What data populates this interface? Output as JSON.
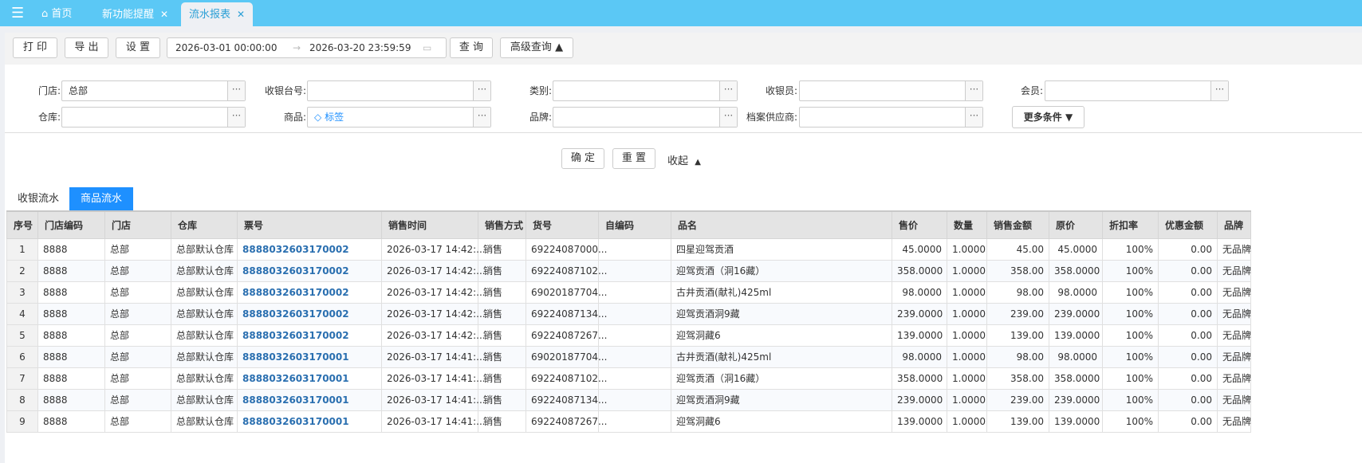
{
  "topbar": {
    "tabs": [
      {
        "label": "首页"
      },
      {
        "label": "新功能提醒"
      },
      {
        "label": "流水报表"
      }
    ]
  },
  "toolbar": {
    "print": "打 印",
    "export": "导 出",
    "settings": "设 置",
    "date_start": "2026-03-01 00:00:00",
    "date_end": "2026-03-20 23:59:59",
    "query": "查 询",
    "advanced": "高级查询"
  },
  "filters": {
    "store": {
      "label": "门店:",
      "value": "总部"
    },
    "register": {
      "label": "收银台号:",
      "value": ""
    },
    "category": {
      "label": "类别:",
      "value": ""
    },
    "cashier": {
      "label": "收银员:",
      "value": ""
    },
    "member": {
      "label": "会员:",
      "value": ""
    },
    "warehouse": {
      "label": "仓库:",
      "value": ""
    },
    "product": {
      "label": "商品:",
      "value": "标签"
    },
    "brand": {
      "label": "品牌:",
      "value": ""
    },
    "supplier": {
      "label": "档案供应商:",
      "value": ""
    },
    "more": "更多条件",
    "confirm": "确 定",
    "reset": "重 置",
    "collapse": "收起"
  },
  "subtabs": [
    {
      "label": "收银流水"
    },
    {
      "label": "商品流水"
    }
  ],
  "table": {
    "columns": [
      "序号",
      "门店编码",
      "门店",
      "仓库",
      "票号",
      "销售时间",
      "销售方式",
      "货号",
      "自编码",
      "品名",
      "售价",
      "数量",
      "销售金额",
      "原价",
      "折扣率",
      "优惠金额",
      "品牌"
    ],
    "rows": [
      [
        "1",
        "8888",
        "总部",
        "总部默认仓库",
        "8888032603170002",
        "2026-03-17 14:42:...",
        "销售",
        "69224087000...",
        "",
        "四星迎驾贡酒",
        "45.0000",
        "1.0000",
        "45.00",
        "45.0000",
        "100%",
        "0.00",
        "无品牌"
      ],
      [
        "2",
        "8888",
        "总部",
        "总部默认仓库",
        "8888032603170002",
        "2026-03-17 14:42:...",
        "销售",
        "69224087102...",
        "",
        "迎驾贡酒（洞16藏）",
        "358.0000",
        "1.0000",
        "358.00",
        "358.0000",
        "100%",
        "0.00",
        "无品牌"
      ],
      [
        "3",
        "8888",
        "总部",
        "总部默认仓库",
        "8888032603170002",
        "2026-03-17 14:42:...",
        "销售",
        "69020187704...",
        "",
        "古井贡酒(献礼)425ml",
        "98.0000",
        "1.0000",
        "98.00",
        "98.0000",
        "100%",
        "0.00",
        "无品牌"
      ],
      [
        "4",
        "8888",
        "总部",
        "总部默认仓库",
        "8888032603170002",
        "2026-03-17 14:42:...",
        "销售",
        "69224087134...",
        "",
        "迎驾贡酒洞9藏",
        "239.0000",
        "1.0000",
        "239.00",
        "239.0000",
        "100%",
        "0.00",
        "无品牌"
      ],
      [
        "5",
        "8888",
        "总部",
        "总部默认仓库",
        "8888032603170002",
        "2026-03-17 14:42:...",
        "销售",
        "69224087267...",
        "",
        "迎驾洞藏6",
        "139.0000",
        "1.0000",
        "139.00",
        "139.0000",
        "100%",
        "0.00",
        "无品牌"
      ],
      [
        "6",
        "8888",
        "总部",
        "总部默认仓库",
        "8888032603170001",
        "2026-03-17 14:41:...",
        "销售",
        "69020187704...",
        "",
        "古井贡酒(献礼)425ml",
        "98.0000",
        "1.0000",
        "98.00",
        "98.0000",
        "100%",
        "0.00",
        "无品牌"
      ],
      [
        "7",
        "8888",
        "总部",
        "总部默认仓库",
        "8888032603170001",
        "2026-03-17 14:41:...",
        "销售",
        "69224087102...",
        "",
        "迎驾贡酒（洞16藏）",
        "358.0000",
        "1.0000",
        "358.00",
        "358.0000",
        "100%",
        "0.00",
        "无品牌"
      ],
      [
        "8",
        "8888",
        "总部",
        "总部默认仓库",
        "8888032603170001",
        "2026-03-17 14:41:...",
        "销售",
        "69224087134...",
        "",
        "迎驾贡酒洞9藏",
        "239.0000",
        "1.0000",
        "239.00",
        "239.0000",
        "100%",
        "0.00",
        "无品牌"
      ],
      [
        "9",
        "8888",
        "总部",
        "总部默认仓库",
        "8888032603170001",
        "2026-03-17 14:41:...",
        "销售",
        "69224087267...",
        "",
        "迎驾洞藏6",
        "139.0000",
        "1.0000",
        "139.00",
        "139.0000",
        "100%",
        "0.00",
        "无品牌"
      ]
    ]
  },
  "colors": {
    "topbar": "#5bc8f5",
    "accent": "#1e90ff",
    "link": "#2a6fb0"
  }
}
